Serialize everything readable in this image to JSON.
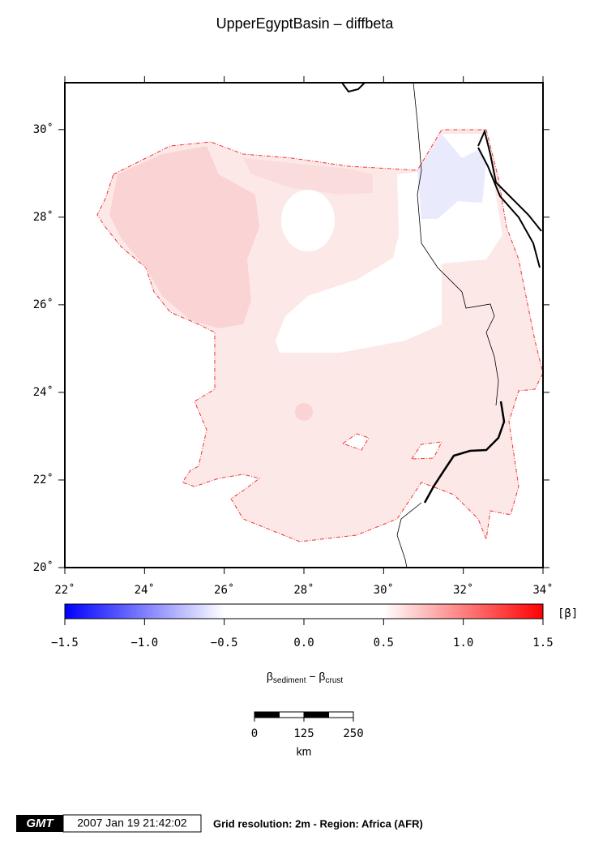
{
  "title": "UpperEgyptBasin – diffbeta",
  "map": {
    "xlim": [
      22,
      34
    ],
    "ylim": [
      20,
      31.07
    ],
    "xticks": [
      {
        "value": 22,
        "label": "22˚"
      },
      {
        "value": 24,
        "label": "24˚"
      },
      {
        "value": 26,
        "label": "26˚"
      },
      {
        "value": 28,
        "label": "28˚"
      },
      {
        "value": 30,
        "label": "30˚"
      },
      {
        "value": 32,
        "label": "32˚"
      },
      {
        "value": 34,
        "label": "34˚"
      }
    ],
    "yticks": [
      {
        "value": 20,
        "label": "20˚"
      },
      {
        "value": 22,
        "label": "22˚"
      },
      {
        "value": 24,
        "label": "24˚"
      },
      {
        "value": 26,
        "label": "26˚"
      },
      {
        "value": 28,
        "label": "28˚"
      },
      {
        "value": 30,
        "label": "30˚"
      }
    ]
  },
  "colorbar": {
    "range": [
      -1.5,
      1.5
    ],
    "colors": [
      "#0000ff",
      "#ffffff",
      "#ffffff",
      "#ff0000"
    ],
    "ticks": [
      {
        "value": -1.5,
        "label": "−1.5"
      },
      {
        "value": -1.0,
        "label": "−1.0"
      },
      {
        "value": -0.5,
        "label": "−0.5"
      },
      {
        "value": 0,
        "label": "0.0"
      },
      {
        "value": 0.5,
        "label": "0.5"
      },
      {
        "value": 1.0,
        "label": "1.0"
      },
      {
        "value": 1.5,
        "label": "1.5"
      }
    ],
    "unit": "[β]",
    "label": {
      "symbol": "β",
      "sub1": "sediment",
      "minus": " − β",
      "sub2": "crust"
    }
  },
  "scalebar": {
    "ticks": [
      0,
      125,
      250
    ],
    "unit": "km"
  },
  "footer": {
    "logo": "GMT",
    "timestamp": "2007 Jan 19 21:42:02",
    "info": "Grid resolution: 2m - Region: Africa (AFR)"
  }
}
